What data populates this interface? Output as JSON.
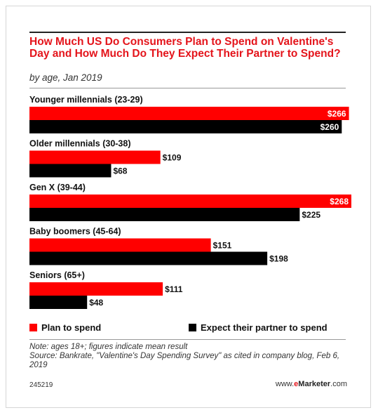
{
  "header": {
    "title": "How Much US Do Consumers Plan to Spend on Valentine's Day and How Much Do They Expect Their Partner to Spend?",
    "subtitle": "by age, Jan 2019"
  },
  "chart_data": {
    "type": "bar",
    "orientation": "horizontal",
    "categories": [
      "Younger millennials (23-29)",
      "Older millennials (30-38)",
      "Gen X (39-44)",
      "Baby boomers (45-64)",
      "Seniors (65+)"
    ],
    "series": [
      {
        "name": "Plan to spend",
        "color": "#ff0000",
        "values": [
          266,
          109,
          268,
          151,
          111
        ],
        "labels": [
          "$266",
          "$109",
          "$268",
          "$151",
          "$111"
        ]
      },
      {
        "name": "Expect their partner to spend",
        "color": "#000000",
        "values": [
          260,
          68,
          225,
          198,
          48
        ],
        "labels": [
          "$260",
          "$68",
          "$225",
          "$198",
          "$48"
        ]
      }
    ],
    "value_prefix": "$",
    "xlim": [
      0,
      268
    ],
    "grid": false,
    "legend": "bottom"
  },
  "legend": {
    "plan_label": "Plan to spend",
    "expect_label": "Expect their partner to spend"
  },
  "footer": {
    "note": "Note: ages 18+; figures indicate mean result",
    "source": "Source: Bankrate, \"Valentine's Day Spending Survey\" as cited in company blog, Feb 6, 2019",
    "chart_id": "245219",
    "brand_prefix": "www.",
    "brand_e": "e",
    "brand_name": "Marketer",
    "brand_suffix": ".com"
  },
  "colors": {
    "accent": "#e4141b",
    "plan_bar": "#ff0000",
    "expect_bar": "#000000"
  }
}
